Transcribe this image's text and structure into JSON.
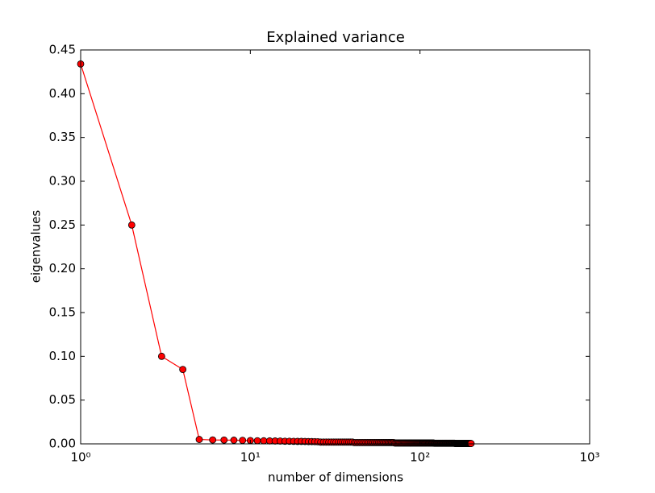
{
  "chart_data": {
    "type": "line",
    "title": "Explained variance",
    "xlabel": "number of dimensions",
    "ylabel": "eigenvalues",
    "xscale": "log",
    "xlim": [
      1,
      1000
    ],
    "ylim": [
      0,
      0.45
    ],
    "xticks": [
      {
        "value": 1,
        "label": "10⁰"
      },
      {
        "value": 10,
        "label": "10¹"
      },
      {
        "value": 100,
        "label": "10²"
      },
      {
        "value": 1000,
        "label": "10³"
      }
    ],
    "yticks": [
      {
        "value": 0,
        "label": "0.00"
      },
      {
        "value": 0.05,
        "label": "0.05"
      },
      {
        "value": 0.1,
        "label": "0.10"
      },
      {
        "value": 0.15,
        "label": "0.15"
      },
      {
        "value": 0.2,
        "label": "0.20"
      },
      {
        "value": 0.25,
        "label": "0.25"
      },
      {
        "value": 0.3,
        "label": "0.30"
      },
      {
        "value": 0.35,
        "label": "0.35"
      },
      {
        "value": 0.4,
        "label": "0.40"
      },
      {
        "value": 0.45,
        "label": "0.45"
      }
    ],
    "x": [
      1,
      2,
      3,
      4,
      5,
      6,
      7,
      8,
      9,
      10,
      11,
      12,
      13,
      14,
      15,
      16,
      17,
      18,
      19,
      20,
      21,
      22,
      23,
      24,
      25,
      26,
      27,
      28,
      29,
      30,
      31,
      32,
      33,
      34,
      35,
      36,
      37,
      38,
      39,
      40,
      41,
      42,
      43,
      44,
      45,
      46,
      47,
      48,
      49,
      50,
      51,
      52,
      53,
      54,
      55,
      56,
      57,
      58,
      59,
      60,
      61,
      62,
      63,
      64,
      65,
      66,
      67,
      68,
      69,
      70,
      71,
      72,
      73,
      74,
      75,
      76,
      77,
      78,
      79,
      80,
      81,
      82,
      83,
      84,
      85,
      86,
      87,
      88,
      89,
      90,
      91,
      92,
      93,
      94,
      95,
      96,
      97,
      98,
      99,
      100,
      101,
      102,
      103,
      104,
      105,
      106,
      107,
      108,
      109,
      110,
      111,
      112,
      113,
      114,
      115,
      116,
      117,
      118,
      119,
      120,
      121,
      122,
      123,
      124,
      125,
      126,
      127,
      128,
      129,
      130,
      131,
      132,
      133,
      134,
      135,
      136,
      137,
      138,
      139,
      140,
      141,
      142,
      143,
      144,
      145,
      146,
      147,
      148,
      149,
      150,
      151,
      152,
      153,
      154,
      155,
      156,
      157,
      158,
      159,
      160,
      161,
      162,
      163,
      164,
      165,
      166,
      167,
      168,
      169,
      170,
      171,
      172,
      173,
      174,
      175,
      176,
      177,
      178,
      179,
      180,
      181,
      182,
      183,
      184,
      185,
      186,
      187,
      188,
      189,
      190,
      191,
      192,
      193,
      194,
      195,
      196,
      197,
      198,
      199,
      200
    ],
    "series": [
      {
        "color": "#ff0000",
        "marker_edge": "#000000",
        "values": [
          0.434,
          0.25,
          0.1,
          0.085,
          0.005,
          0.0045,
          0.0044,
          0.0042,
          0.004,
          0.0038,
          0.0036,
          0.0035,
          0.0034,
          0.0033,
          0.0032,
          0.003,
          0.003,
          0.0029,
          0.0028,
          0.0028,
          0.0027,
          0.0026,
          0.0026,
          0.0025,
          0.0024,
          0.002,
          0.002,
          0.002,
          0.002,
          0.002,
          0.002,
          0.002,
          0.002,
          0.002,
          0.002,
          0.002,
          0.002,
          0.002,
          0.002,
          0.002,
          0.0015,
          0.0015,
          0.0015,
          0.0015,
          0.0015,
          0.0015,
          0.0015,
          0.0015,
          0.0015,
          0.0015,
          0.0015,
          0.0015,
          0.0015,
          0.0015,
          0.0015,
          0.0015,
          0.0015,
          0.0015,
          0.0015,
          0.0015,
          0.0015,
          0.0015,
          0.0015,
          0.0015,
          0.0015,
          0.0015,
          0.0015,
          0.0015,
          0.0015,
          0.0015,
          0.001,
          0.001,
          0.001,
          0.001,
          0.001,
          0.001,
          0.001,
          0.001,
          0.001,
          0.001,
          0.001,
          0.001,
          0.001,
          0.001,
          0.001,
          0.001,
          0.001,
          0.001,
          0.001,
          0.001,
          0.001,
          0.001,
          0.001,
          0.001,
          0.001,
          0.001,
          0.001,
          0.001,
          0.001,
          0.001,
          0.001,
          0.001,
          0.001,
          0.001,
          0.001,
          0.001,
          0.001,
          0.001,
          0.001,
          0.001,
          0.001,
          0.001,
          0.001,
          0.001,
          0.001,
          0.001,
          0.001,
          0.001,
          0.001,
          0.001,
          0.0007,
          0.0007,
          0.0007,
          0.0007,
          0.0007,
          0.0007,
          0.0007,
          0.0007,
          0.0007,
          0.0007,
          0.0007,
          0.0007,
          0.0007,
          0.0007,
          0.0007,
          0.0007,
          0.0007,
          0.0007,
          0.0007,
          0.0007,
          0.0007,
          0.0007,
          0.0007,
          0.0007,
          0.0007,
          0.0007,
          0.0007,
          0.0007,
          0.0007,
          0.0007,
          0.0007,
          0.0007,
          0.0007,
          0.0007,
          0.0007,
          0.0007,
          0.0007,
          0.0007,
          0.0007,
          0.0007,
          0.0004,
          0.0004,
          0.0004,
          0.0004,
          0.0004,
          0.0004,
          0.0004,
          0.0004,
          0.0004,
          0.0004,
          0.0004,
          0.0004,
          0.0004,
          0.0004,
          0.0004,
          0.0004,
          0.0004,
          0.0004,
          0.0004,
          0.0004,
          0.0004,
          0.0004,
          0.0004,
          0.0004,
          0.0004,
          0.0004,
          0.0004,
          0.0004,
          0.0004,
          0.0004,
          0.0004,
          0.0004,
          0.0004,
          0.0004,
          0.0004,
          0.0004,
          0.0004,
          0.0004,
          0.0004,
          0.0004
        ]
      }
    ]
  }
}
